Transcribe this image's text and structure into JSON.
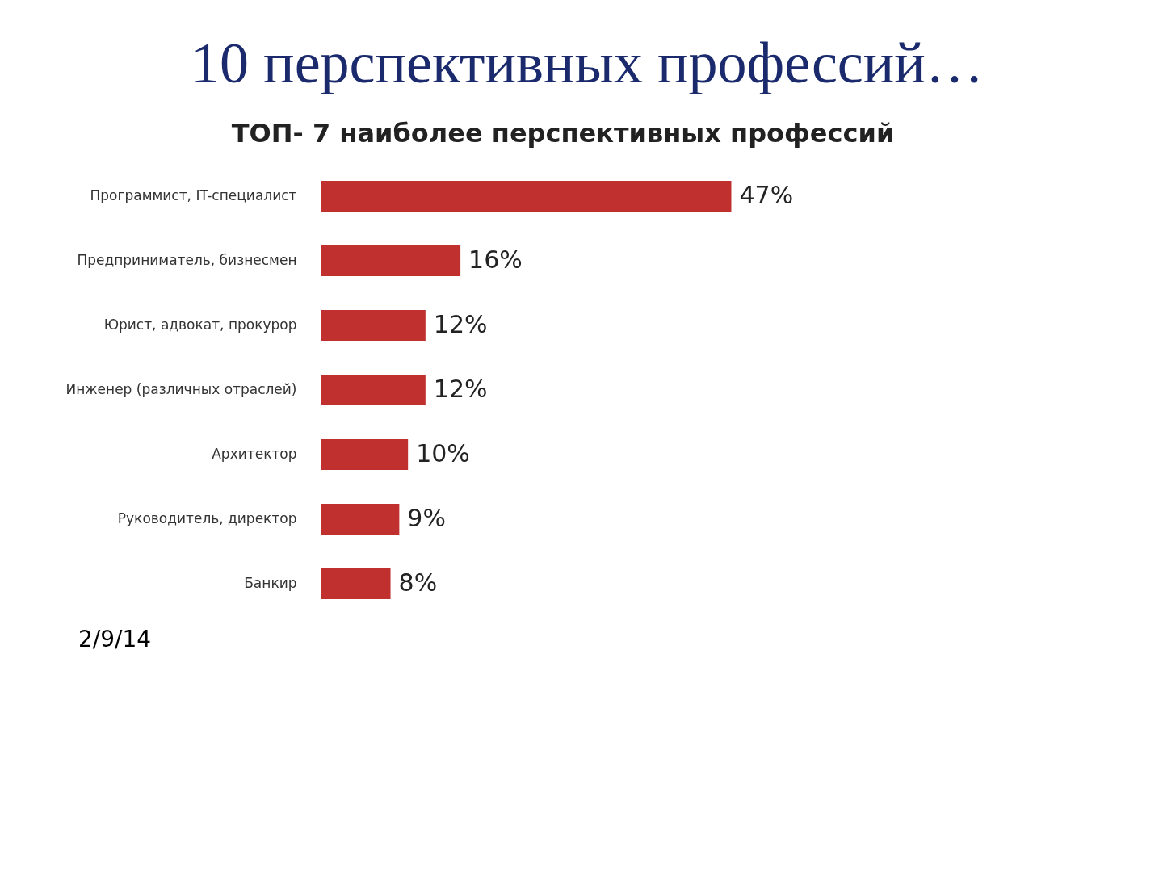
{
  "chart_data": {
    "type": "bar",
    "orientation": "horizontal",
    "title": "10 перспективных профессий…",
    "subtitle": "ТОП- 7 наиболее перспективных профессий",
    "categories": [
      "Программист, IT-специалист",
      "Предприниматель, бизнесмен",
      "Юрист, адвокат, прокурор",
      "Инженер (различных отраслей)",
      "Архитектор",
      "Руководитель, директор",
      "Банкир"
    ],
    "values": [
      47,
      16,
      12,
      12,
      10,
      9,
      8
    ],
    "value_labels": [
      "47%",
      "16%",
      "12%",
      "12%",
      "10%",
      "9%",
      "8%"
    ],
    "color": "#c0302f",
    "annotations": [
      "2/9/14"
    ],
    "grid": false
  }
}
